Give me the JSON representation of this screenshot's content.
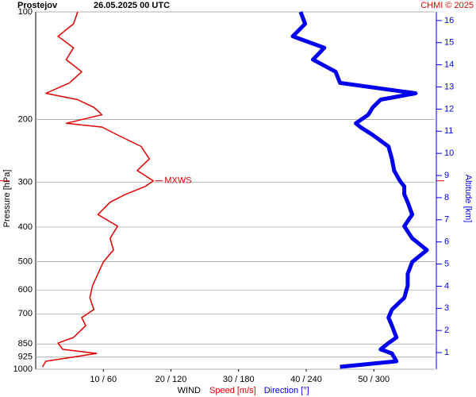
{
  "chart_data": {
    "type": "line",
    "title": "Prostejov",
    "subtitle": "26.05.2025 00 UTC",
    "credit": "CHMI © 2025",
    "ylabel": "Pressure [hPa]",
    "y2label": "Altitude [km]",
    "xlabel": "WIND",
    "log_y": true,
    "grid": true,
    "ylim": [
      1000,
      100
    ],
    "yticks": [
      100,
      200,
      300,
      400,
      500,
      600,
      700,
      850,
      925,
      1000
    ],
    "y2lim": [
      0.25,
      16.39
    ],
    "y2ticks": [
      1,
      2,
      3,
      4,
      5,
      6,
      7,
      8,
      9,
      10,
      11,
      12,
      13,
      14,
      15,
      16
    ],
    "xlim": [
      0,
      59
    ],
    "x2lim": [
      0,
      354
    ],
    "xticks": [
      {
        "value": 10,
        "label": "10 / 60"
      },
      {
        "value": 20,
        "label": "20 / 120"
      },
      {
        "value": 30,
        "label": "30 / 180"
      },
      {
        "value": 40,
        "label": "40 / 240"
      },
      {
        "value": 50,
        "label": "50 / 300"
      }
    ],
    "annotation": {
      "label": "MXWS",
      "pressure": 297,
      "color": "#e00000"
    },
    "pressure": [
      985,
      950,
      903,
      880,
      845,
      815,
      755,
      717,
      681,
      631,
      584,
      541,
      501,
      464,
      430,
      398,
      369,
      341,
      324,
      308,
      297,
      278,
      258,
      238,
      221,
      210,
      205,
      194,
      185,
      176,
      169,
      158,
      147,
      136,
      126,
      117,
      108,
      100
    ],
    "series": [
      {
        "name": "Speed [m/s]",
        "color": "#e00000",
        "width": 1.5,
        "values": [
          1,
          1.5,
          9,
          4,
          3.3,
          5.6,
          7.4,
          6.8,
          8.6,
          8,
          8.4,
          9.2,
          10,
          11.5,
          11,
          12.1,
          9.2,
          11,
          13.3,
          16.2,
          17.4,
          15,
          16.8,
          15.6,
          12.1,
          9.8,
          4.5,
          9.8,
          8.6,
          6.2,
          1.5,
          5,
          6.8,
          4.5,
          5.6,
          3.3,
          5.6,
          6.2
        ]
      },
      {
        "name": "Direction [°]",
        "color": "#0000ee",
        "width": 5,
        "axis": "x2",
        "values": [
          270,
          320,
          316,
          306,
          313,
          320,
          316,
          313,
          316,
          327,
          330,
          330,
          334,
          347,
          334,
          327,
          334,
          330,
          327,
          327,
          323,
          318,
          316,
          313,
          299,
          288,
          284,
          295,
          299,
          306,
          337,
          270,
          266,
          246,
          256,
          228,
          239,
          235
        ]
      }
    ]
  }
}
